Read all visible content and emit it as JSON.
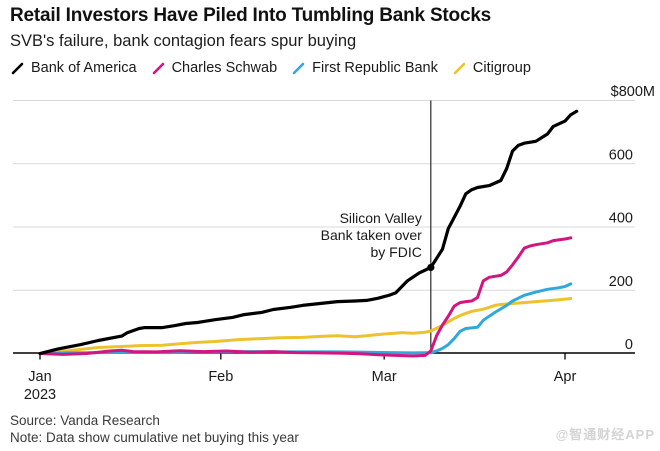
{
  "header": {
    "title": "Retail Investors Have Piled Into Tumbling Bank Stocks",
    "subtitle": "SVB's failure, bank contagion fears spur buying"
  },
  "legend": {
    "items": [
      {
        "label": "Bank of America",
        "color": "#000000"
      },
      {
        "label": "Charles Schwab",
        "color": "#d21580"
      },
      {
        "label": "First Republic Bank",
        "color": "#2fa8dc"
      },
      {
        "label": "Citigroup",
        "color": "#ecc22e"
      }
    ]
  },
  "chart_data": {
    "type": "line",
    "title": "Retail Investors Have Piled Into Tumbling Bank Stocks",
    "subtitle": "SVB's failure, bank contagion fears spur buying",
    "unit": "USD millions, cumulative net buying in 2023",
    "grid": "on",
    "legend_position": "top",
    "x_axis": {
      "unit": "days since Jan 1 2023",
      "range": [
        0,
        104
      ],
      "ticks": [
        {
          "day": 0,
          "label": "Jan",
          "sublabel": "2023"
        },
        {
          "day": 31,
          "label": "Feb"
        },
        {
          "day": 59,
          "label": "Mar"
        },
        {
          "day": 90,
          "label": "Apr"
        }
      ]
    },
    "y_axis": {
      "range": [
        0,
        800
      ],
      "ticks": [
        {
          "value": 0,
          "label": "0"
        },
        {
          "value": 200,
          "label": "200"
        },
        {
          "value": 400,
          "label": "400"
        },
        {
          "value": 600,
          "label": "600"
        },
        {
          "value": 800,
          "label": "$800M"
        }
      ]
    },
    "annotation": {
      "lines": [
        "Silicon Valley",
        "Bank taken over",
        "by FDIC"
      ],
      "day": 67,
      "value": 272
    },
    "series": [
      {
        "name": "Bank of America",
        "color": "#000000",
        "width": 3.2,
        "points": [
          [
            0,
            0
          ],
          [
            3,
            14
          ],
          [
            7,
            28
          ],
          [
            10,
            41
          ],
          [
            14,
            55
          ],
          [
            15,
            66
          ],
          [
            17,
            79
          ],
          [
            18,
            82
          ],
          [
            21,
            82
          ],
          [
            23,
            88
          ],
          [
            25,
            95
          ],
          [
            27,
            98
          ],
          [
            28,
            101
          ],
          [
            30,
            107
          ],
          [
            33,
            114
          ],
          [
            35,
            123
          ],
          [
            38,
            130
          ],
          [
            40,
            139
          ],
          [
            43,
            146
          ],
          [
            45,
            152
          ],
          [
            48,
            158
          ],
          [
            51,
            164
          ],
          [
            54,
            166
          ],
          [
            56,
            168
          ],
          [
            58,
            175
          ],
          [
            60,
            185
          ],
          [
            61,
            192
          ],
          [
            63,
            230
          ],
          [
            65,
            255
          ],
          [
            67,
            272
          ],
          [
            69,
            330
          ],
          [
            70,
            395
          ],
          [
            72,
            465
          ],
          [
            73,
            505
          ],
          [
            74,
            518
          ],
          [
            75,
            525
          ],
          [
            77,
            531
          ],
          [
            79,
            547
          ],
          [
            80,
            585
          ],
          [
            81,
            640
          ],
          [
            82,
            658
          ],
          [
            83,
            665
          ],
          [
            85,
            671
          ],
          [
            87,
            694
          ],
          [
            88,
            718
          ],
          [
            90,
            735
          ],
          [
            91,
            755
          ],
          [
            92,
            766
          ]
        ]
      },
      {
        "name": "Charles Schwab",
        "color": "#d21580",
        "width": 3,
        "points": [
          [
            0,
            0
          ],
          [
            4,
            -3
          ],
          [
            8,
            0
          ],
          [
            12,
            8
          ],
          [
            14,
            10
          ],
          [
            16,
            6
          ],
          [
            20,
            5
          ],
          [
            24,
            9
          ],
          [
            28,
            6
          ],
          [
            32,
            8
          ],
          [
            36,
            4
          ],
          [
            40,
            6
          ],
          [
            44,
            3
          ],
          [
            48,
            2
          ],
          [
            52,
            1
          ],
          [
            55,
            -1
          ],
          [
            58,
            -4
          ],
          [
            61,
            -6
          ],
          [
            64,
            -8
          ],
          [
            66,
            -6
          ],
          [
            67,
            8
          ],
          [
            68,
            57
          ],
          [
            69,
            90
          ],
          [
            70,
            118
          ],
          [
            71,
            150
          ],
          [
            72,
            161
          ],
          [
            73,
            164
          ],
          [
            74,
            166
          ],
          [
            75,
            177
          ],
          [
            76,
            230
          ],
          [
            77,
            241
          ],
          [
            78,
            244
          ],
          [
            79,
            247
          ],
          [
            80,
            258
          ],
          [
            81,
            280
          ],
          [
            82,
            305
          ],
          [
            83,
            333
          ],
          [
            84,
            340
          ],
          [
            85,
            344
          ],
          [
            87,
            350
          ],
          [
            88,
            357
          ],
          [
            90,
            362
          ],
          [
            91,
            366
          ]
        ]
      },
      {
        "name": "First Republic Bank",
        "color": "#2fa8dc",
        "width": 3,
        "points": [
          [
            0,
            0
          ],
          [
            5,
            2
          ],
          [
            10,
            3
          ],
          [
            16,
            4
          ],
          [
            21,
            4
          ],
          [
            26,
            5
          ],
          [
            31,
            5
          ],
          [
            36,
            6
          ],
          [
            41,
            5
          ],
          [
            46,
            5
          ],
          [
            51,
            5
          ],
          [
            56,
            4
          ],
          [
            60,
            3
          ],
          [
            64,
            2
          ],
          [
            67,
            3
          ],
          [
            68,
            8
          ],
          [
            69,
            16
          ],
          [
            70,
            28
          ],
          [
            71,
            47
          ],
          [
            72,
            70
          ],
          [
            73,
            79
          ],
          [
            74,
            81
          ],
          [
            75,
            83
          ],
          [
            76,
            105
          ],
          [
            77,
            118
          ],
          [
            78,
            130
          ],
          [
            80,
            152
          ],
          [
            81,
            166
          ],
          [
            83,
            184
          ],
          [
            85,
            194
          ],
          [
            87,
            203
          ],
          [
            89,
            208
          ],
          [
            90,
            212
          ],
          [
            91,
            220
          ]
        ]
      },
      {
        "name": "Citigroup",
        "color": "#ecc22e",
        "width": 3,
        "points": [
          [
            0,
            0
          ],
          [
            3,
            5
          ],
          [
            7,
            13
          ],
          [
            10,
            19
          ],
          [
            14,
            22
          ],
          [
            17,
            25
          ],
          [
            21,
            26
          ],
          [
            24,
            31
          ],
          [
            27,
            35
          ],
          [
            30,
            38
          ],
          [
            34,
            44
          ],
          [
            38,
            47
          ],
          [
            41,
            50
          ],
          [
            45,
            51
          ],
          [
            48,
            54
          ],
          [
            51,
            56
          ],
          [
            54,
            53
          ],
          [
            56,
            56
          ],
          [
            58,
            60
          ],
          [
            60,
            63
          ],
          [
            62,
            66
          ],
          [
            64,
            64
          ],
          [
            66,
            67
          ],
          [
            67,
            71
          ],
          [
            68,
            80
          ],
          [
            69,
            89
          ],
          [
            70,
            100
          ],
          [
            71,
            111
          ],
          [
            72,
            120
          ],
          [
            73,
            127
          ],
          [
            74,
            133
          ],
          [
            76,
            140
          ],
          [
            77,
            146
          ],
          [
            78,
            152
          ],
          [
            79,
            155
          ],
          [
            81,
            158
          ],
          [
            83,
            161
          ],
          [
            85,
            164
          ],
          [
            87,
            167
          ],
          [
            89,
            170
          ],
          [
            91,
            174
          ]
        ]
      }
    ]
  },
  "footer": {
    "source": "Source: Vanda Research",
    "note": "Note: Data show cumulative net buying this year"
  },
  "watermark": "@智通财经APP",
  "colors": {
    "background": "#ffffff",
    "grid": "#d9d9d9",
    "axis": "#000000",
    "event_line": "#000000",
    "text": "#1a1a1a",
    "footer_text": "#3a3a3a",
    "watermark": "#d4d4d4"
  }
}
